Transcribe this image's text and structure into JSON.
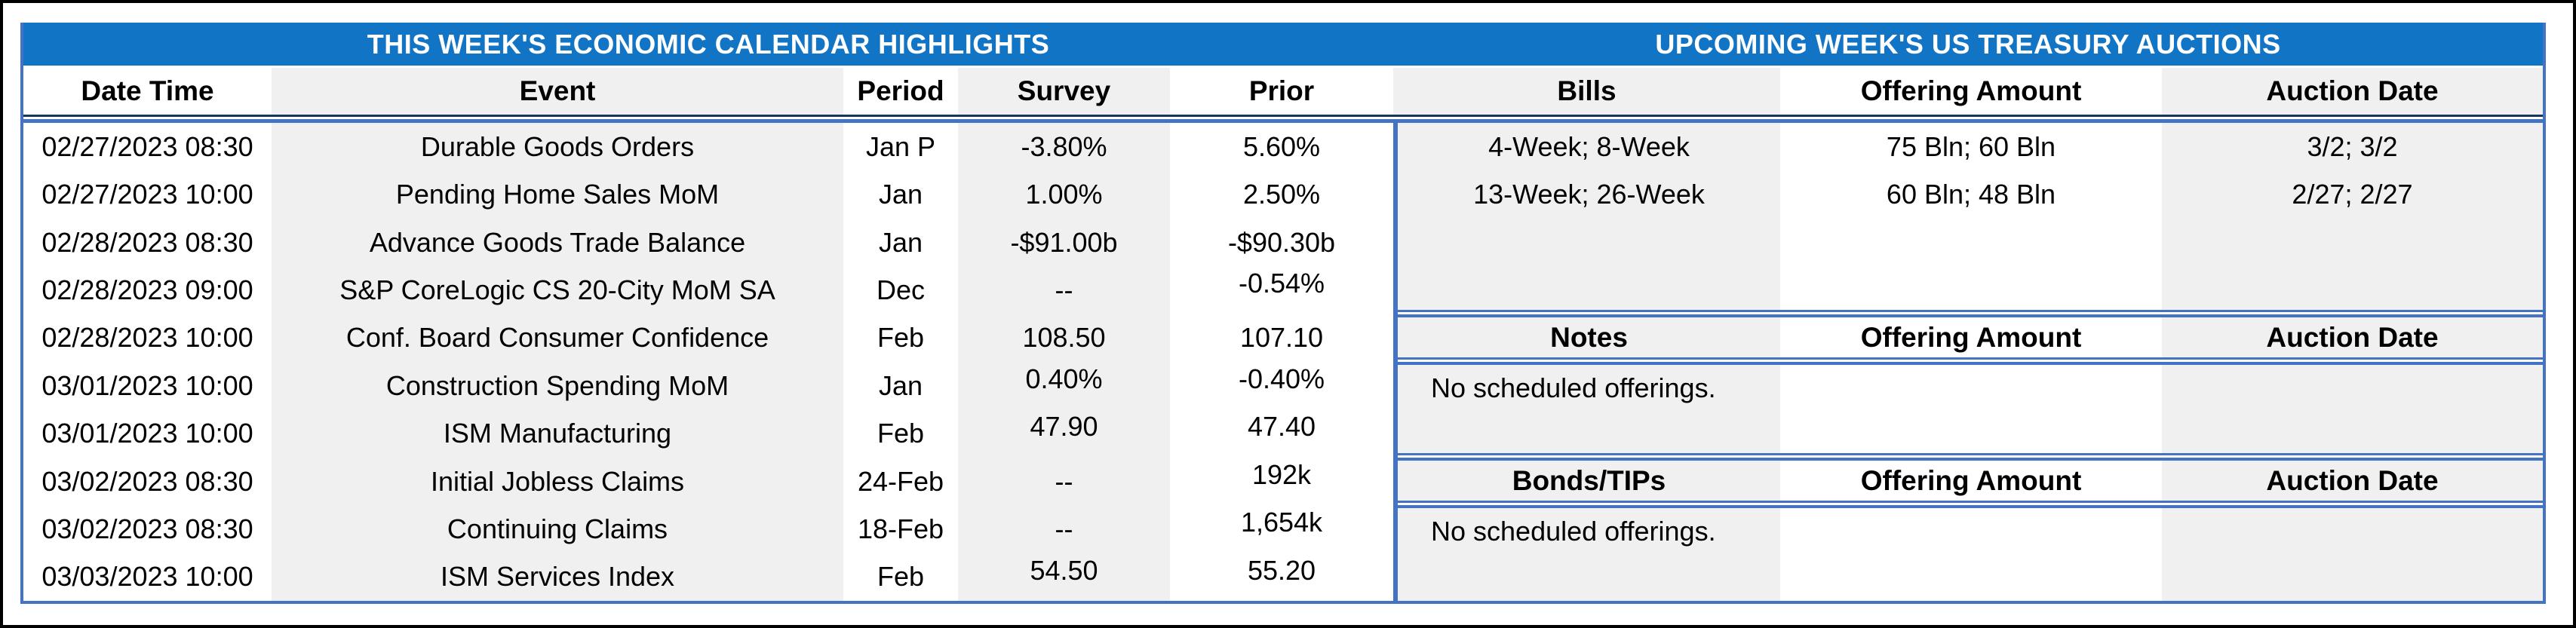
{
  "titles": {
    "left": "THIS WEEK'S ECONOMIC CALENDAR HIGHLIGHTS",
    "right": "UPCOMING WEEK'S US TREASURY AUCTIONS"
  },
  "colors": {
    "title_bar_blue": "#1274C5",
    "border_blue": "#4472C4",
    "dark_rule_navy": "#17375E",
    "stripe_gray": "#F0F0F0"
  },
  "calendar": {
    "headers": {
      "date": "Date Time",
      "event": "Event",
      "period": "Period",
      "survey": "Survey",
      "prior": "Prior"
    },
    "rows": [
      {
        "date": "02/27/2023 08:30",
        "event": "Durable Goods Orders",
        "period": "Jan P",
        "survey": "-3.80%",
        "prior": "5.60%"
      },
      {
        "date": "02/27/2023 10:00",
        "event": "Pending Home Sales MoM",
        "period": "Jan",
        "survey": "1.00%",
        "prior": "2.50%"
      },
      {
        "date": "02/28/2023 08:30",
        "event": "Advance Goods Trade Balance",
        "period": "Jan",
        "survey": "-$91.00b",
        "prior": "-$90.30b"
      },
      {
        "date": "02/28/2023 09:00",
        "event": "S&P CoreLogic CS 20-City MoM SA",
        "period": "Dec",
        "survey": "--",
        "prior": "-0.54%"
      },
      {
        "date": "02/28/2023 10:00",
        "event": "Conf. Board Consumer Confidence",
        "period": "Feb",
        "survey": "108.50",
        "prior": "107.10"
      },
      {
        "date": "03/01/2023 10:00",
        "event": "Construction Spending MoM",
        "period": "Jan",
        "survey": "0.40%",
        "prior": "-0.40%"
      },
      {
        "date": "03/01/2023 10:00",
        "event": "ISM Manufacturing",
        "period": "Feb",
        "survey": "47.90",
        "prior": "47.40"
      },
      {
        "date": "03/02/2023 08:30",
        "event": "Initial Jobless Claims",
        "period": "24-Feb",
        "survey": "--",
        "prior": "192k"
      },
      {
        "date": "03/02/2023 08:30",
        "event": "Continuing Claims",
        "period": "18-Feb",
        "survey": "--",
        "prior": "1,654k"
      },
      {
        "date": "03/03/2023 10:00",
        "event": "ISM Services Index",
        "period": "Feb",
        "survey": "54.50",
        "prior": "55.20"
      }
    ]
  },
  "auctions": {
    "bills": {
      "section_label": "Bills",
      "offering_header": "Offering Amount",
      "date_header": "Auction Date",
      "rows": [
        {
          "security": "4-Week; 8-Week",
          "offering": "75 Bln; 60 Bln",
          "auction_date": "3/2; 3/2"
        },
        {
          "security": "13-Week; 26-Week",
          "offering": "60 Bln; 48 Bln",
          "auction_date": "2/27; 2/27"
        }
      ]
    },
    "notes": {
      "section_label": "Notes",
      "offering_header": "Offering Amount",
      "date_header": "Auction Date",
      "empty_text": "No scheduled offerings."
    },
    "bonds": {
      "section_label": "Bonds/TIPs",
      "offering_header": "Offering Amount",
      "date_header": "Auction Date",
      "empty_text": "No scheduled offerings."
    }
  }
}
